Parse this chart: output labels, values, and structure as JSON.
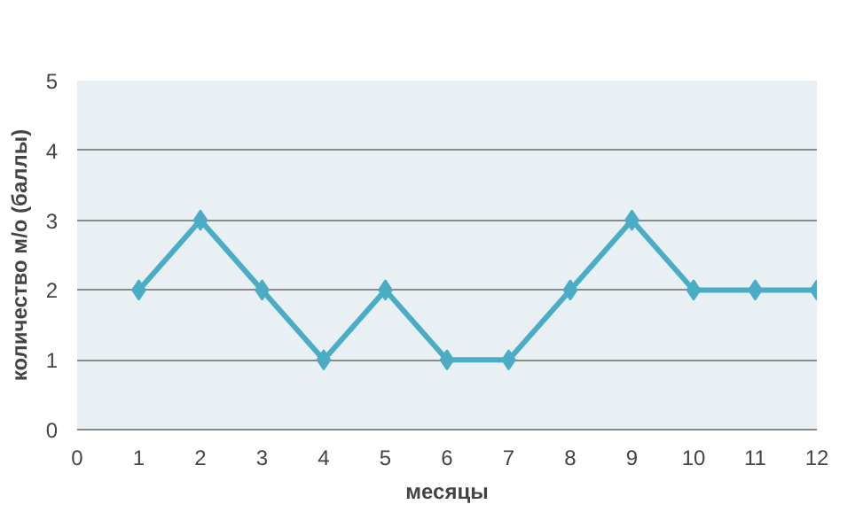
{
  "chart_data": {
    "type": "line",
    "xlabel": "месяцы",
    "ylabel": "количество м/о (баллы)",
    "x": [
      1,
      2,
      3,
      4,
      5,
      6,
      7,
      8,
      9,
      10,
      11,
      12
    ],
    "series": [
      {
        "color": "#4bacc6",
        "values": [
          2,
          3,
          2,
          1,
          2,
          1,
          1,
          2,
          3,
          2,
          2,
          2
        ]
      }
    ],
    "xlim": [
      0,
      12
    ],
    "xticks": [
      0,
      1,
      2,
      3,
      4,
      5,
      6,
      7,
      8,
      9,
      10,
      11,
      12
    ],
    "ylim": [
      0,
      5
    ],
    "yticks": [
      0,
      1,
      2,
      3,
      4,
      5
    ],
    "grid": "y",
    "marker": "diamond",
    "line_style": "solid"
  }
}
